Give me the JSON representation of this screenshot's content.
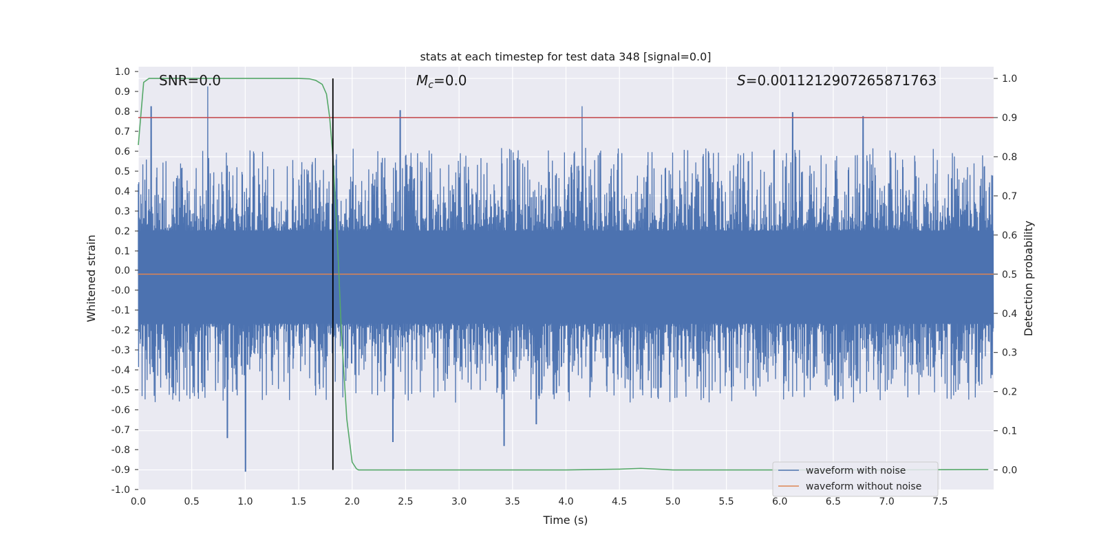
{
  "chart_data": {
    "type": "line",
    "title": "stats at each timestep for test data 348 [signal=0.0]",
    "xlabel": "Time (s)",
    "ylabel": "Whitened strain",
    "ylabel_right": "Detection probability",
    "xlim": [
      0.0,
      8.0
    ],
    "ylim": [
      -1.09,
      1.05
    ],
    "ylim_right": [
      -0.05,
      1.03
    ],
    "x_ticks": [
      "0.0",
      "0.5",
      "1.0",
      "1.5",
      "2.0",
      "2.5",
      "3.0",
      "3.5",
      "4.0",
      "4.5",
      "5.0",
      "5.5",
      "6.0",
      "6.5",
      "7.0",
      "7.5"
    ],
    "y_ticks": [
      "1.0",
      "0.9",
      "0.8",
      "0.7",
      "0.6",
      "0.5",
      "0.4",
      "0.3",
      "0.2",
      "0.1",
      "0.0",
      "-0.0",
      "-0.1",
      "-0.2",
      "-0.3",
      "-0.4",
      "-0.5",
      "-0.6",
      "-0.7",
      "-0.8",
      "-0.9",
      "-1.0"
    ],
    "y_ticks_right": [
      "1.0",
      "0.9",
      "0.8",
      "0.7",
      "0.6",
      "0.5",
      "0.4",
      "0.3",
      "0.2",
      "0.1",
      "0.0"
    ],
    "grid": true,
    "annotations": {
      "snr": "SNR=0.0",
      "mc_symbol": "M",
      "mc_sub": "c",
      "mc_value": "=0.0",
      "s_symbol": "S",
      "s_value": "=0.0011212907265871763"
    },
    "series": [
      {
        "name": "waveform with noise",
        "color": "#4c72b0",
        "axis": "left",
        "description_points": {
          "noise_core_range": [
            -0.25,
            0.22
          ],
          "peak_highs": [
            [
              0.12,
              0.85
            ],
            [
              0.65,
              0.95
            ],
            [
              2.45,
              0.83
            ],
            [
              4.15,
              0.85
            ],
            [
              6.12,
              0.82
            ],
            [
              6.78,
              0.8
            ]
          ],
          "peak_lows": [
            [
              0.83,
              -0.83
            ],
            [
              1.0,
              -1.0
            ],
            [
              2.38,
              -0.85
            ],
            [
              3.42,
              -0.87
            ],
            [
              3.72,
              -0.76
            ]
          ]
        }
      },
      {
        "name": "waveform without noise",
        "color": "#dd8452",
        "axis": "left",
        "x": [
          0.0,
          8.0
        ],
        "y": [
          0.0,
          0.0
        ]
      },
      {
        "name": "detection probability",
        "color": "#55a868",
        "axis": "right",
        "x": [
          0.0,
          0.05,
          0.1,
          0.2,
          0.4,
          0.8,
          1.2,
          1.5,
          1.6,
          1.66,
          1.72,
          1.76,
          1.79,
          1.82,
          1.86,
          1.9,
          1.95,
          2.0,
          2.04,
          2.06,
          2.2,
          3.0,
          4.0,
          4.5,
          4.7,
          5.0,
          6.0,
          7.0,
          7.95
        ],
        "y": [
          0.83,
          0.99,
          1.0,
          1.0,
          1.0,
          1.0,
          1.0,
          1.0,
          0.999,
          0.995,
          0.985,
          0.96,
          0.9,
          0.8,
          0.6,
          0.35,
          0.13,
          0.02,
          0.003,
          0.0,
          0.0,
          0.0,
          0.0,
          0.002,
          0.004,
          0.0,
          0.0,
          0.0,
          0.001
        ]
      },
      {
        "name": "threshold",
        "color": "#c44e52",
        "axis": "right",
        "x": [
          0.0,
          8.0
        ],
        "y": [
          0.9,
          0.9
        ]
      },
      {
        "name": "detection time",
        "color": "#000000",
        "axis": "right",
        "x": [
          1.82,
          1.82
        ],
        "y": [
          0.0,
          1.0
        ]
      }
    ],
    "legend": {
      "placement": "lower-right",
      "entries": [
        {
          "label": "waveform with noise",
          "color": "#4c72b0"
        },
        {
          "label": "waveform without noise",
          "color": "#dd8452"
        }
      ]
    }
  }
}
